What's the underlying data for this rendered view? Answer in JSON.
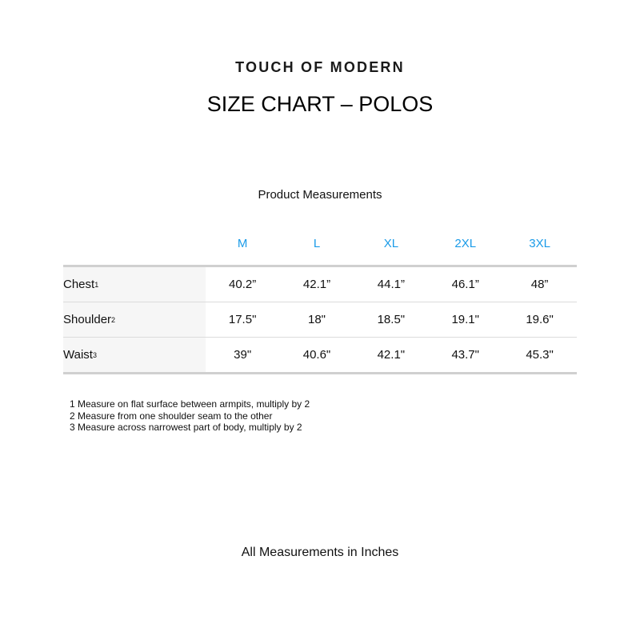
{
  "brand": "TOUCH OF MODERN",
  "title": "SIZE CHART – POLOS",
  "subtitle": "Product Measurements",
  "header_color": "#1a9be8",
  "sizes": [
    "M",
    "L",
    "XL",
    "2XL",
    "3XL"
  ],
  "rows": [
    {
      "label": "Chest",
      "sup": "1",
      "values": [
        "40.2”",
        "42.1”",
        "44.1”",
        "46.1”",
        "48”"
      ]
    },
    {
      "label": "Shoulder",
      "sup": "2",
      "values": [
        "17.5\"",
        "18\"",
        "18.5\"",
        "19.1\"",
        "19.6\""
      ]
    },
    {
      "label": "Waist",
      "sup": "3",
      "values": [
        "39\"",
        "40.6\"",
        "42.1\"",
        "43.7\"",
        "45.3\""
      ]
    }
  ],
  "notes": [
    "1 Measure on flat surface between armpits, multiply by 2",
    "2 Measure from one shoulder seam to the other",
    "3 Measure across narrowest part of body, multiply by 2"
  ],
  "footer": "All Measurements in Inches"
}
